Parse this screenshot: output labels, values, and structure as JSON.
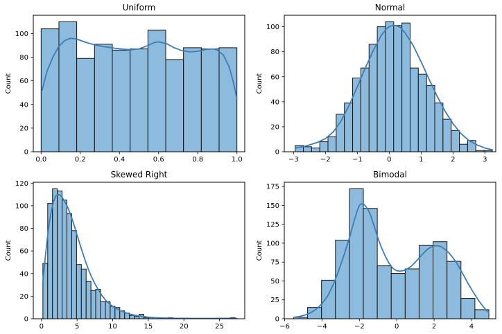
{
  "figure": {
    "background": "#ffffff",
    "bar_fill": "#8dbbdd",
    "bar_edge": "#141414",
    "kde_color": "#3e7cb4",
    "spine_color": "#000000",
    "tick_color": "#000000",
    "ylabel": "Count"
  },
  "chart_data": [
    {
      "type": "bar",
      "title": "Uniform",
      "ylabel": "Count",
      "grid": false,
      "legend": "none",
      "xlim": [
        -0.04,
        1.04
      ],
      "ylim": [
        0,
        115.5
      ],
      "xtick_values": [
        0.0,
        0.2,
        0.4,
        0.6,
        0.8,
        1.0
      ],
      "xtick_labels": [
        "0.0",
        "0.2",
        "0.4",
        "0.6",
        "0.8",
        "1.0"
      ],
      "ytick_values": [
        0,
        20,
        40,
        60,
        80,
        100
      ],
      "ytick_labels": [
        "0",
        "20",
        "40",
        "60",
        "80",
        "100"
      ],
      "bins": {
        "start": 0.0,
        "width": 0.090909,
        "counts": [
          104,
          110,
          79,
          91,
          86,
          87,
          103,
          78,
          88,
          87,
          88
        ]
      },
      "kde_line": [
        [
          0.005,
          52
        ],
        [
          0.03,
          68
        ],
        [
          0.06,
          80
        ],
        [
          0.09,
          89
        ],
        [
          0.12,
          94
        ],
        [
          0.15,
          96
        ],
        [
          0.18,
          95.5
        ],
        [
          0.22,
          93
        ],
        [
          0.26,
          91
        ],
        [
          0.3,
          89.5
        ],
        [
          0.34,
          88.5
        ],
        [
          0.38,
          87.5
        ],
        [
          0.42,
          86.8
        ],
        [
          0.46,
          86.3
        ],
        [
          0.5,
          87
        ],
        [
          0.54,
          89.5
        ],
        [
          0.58,
          92.5
        ],
        [
          0.6,
          93
        ],
        [
          0.64,
          91.5
        ],
        [
          0.68,
          88
        ],
        [
          0.72,
          85.5
        ],
        [
          0.76,
          84.5
        ],
        [
          0.8,
          85
        ],
        [
          0.84,
          86.5
        ],
        [
          0.88,
          87
        ],
        [
          0.9,
          86
        ],
        [
          0.93,
          82
        ],
        [
          0.96,
          72
        ],
        [
          0.98,
          60
        ],
        [
          1.0,
          45
        ]
      ]
    },
    {
      "type": "bar",
      "title": "Normal",
      "ylabel": "Count",
      "grid": false,
      "legend": "none",
      "xlim": [
        -3.29,
        3.34
      ],
      "ylim": [
        0,
        109.2
      ],
      "xtick_values": [
        -3,
        -2,
        -1,
        0,
        1,
        2,
        3
      ],
      "xtick_labels": [
        "−3",
        "−2",
        "−1",
        "0",
        "1",
        "2",
        "3"
      ],
      "ytick_values": [
        0,
        20,
        40,
        60,
        80,
        100
      ],
      "ytick_labels": [
        "0",
        "20",
        "40",
        "60",
        "80",
        "100"
      ],
      "bins": {
        "start": -2.95,
        "width": 0.2575,
        "counts": [
          5,
          4,
          3,
          8,
          12,
          30,
          39,
          59,
          67,
          86,
          100,
          104,
          101,
          103,
          67,
          62,
          53,
          39,
          26,
          17,
          6,
          9,
          1,
          1
        ]
      },
      "kde_line": [
        [
          -2.95,
          3
        ],
        [
          -2.7,
          4
        ],
        [
          -2.5,
          5.5
        ],
        [
          -2.25,
          7.5
        ],
        [
          -2,
          10.5
        ],
        [
          -1.75,
          16
        ],
        [
          -1.5,
          25
        ],
        [
          -1.25,
          37.5
        ],
        [
          -1,
          52
        ],
        [
          -0.75,
          67
        ],
        [
          -0.5,
          81
        ],
        [
          -0.25,
          93
        ],
        [
          -0.1,
          98
        ],
        [
          0,
          100
        ],
        [
          0.1,
          101
        ],
        [
          0.2,
          101
        ],
        [
          0.35,
          99.5
        ],
        [
          0.5,
          95
        ],
        [
          0.75,
          85
        ],
        [
          1,
          72
        ],
        [
          1.25,
          58
        ],
        [
          1.5,
          44.5
        ],
        [
          1.75,
          32.5
        ],
        [
          2,
          22.5
        ],
        [
          2.25,
          14.5
        ],
        [
          2.5,
          9
        ],
        [
          2.75,
          5.5
        ],
        [
          3,
          3
        ],
        [
          3.24,
          1.5
        ]
      ]
    },
    {
      "type": "bar",
      "title": "Skewed Right",
      "ylabel": "Count",
      "grid": false,
      "legend": "none",
      "xlim": [
        -1.15,
        28.55
      ],
      "ylim": [
        0,
        120.8
      ],
      "xtick_values": [
        0,
        5,
        10,
        15,
        20,
        25
      ],
      "xtick_labels": [
        "0",
        "5",
        "10",
        "15",
        "20",
        "25"
      ],
      "ytick_values": [
        0,
        20,
        40,
        60,
        80,
        100,
        120
      ],
      "ytick_labels": [
        "0",
        "20",
        "40",
        "60",
        "80",
        "100",
        "120"
      ],
      "bins": {
        "start": 0.2,
        "width": 0.675,
        "counts": [
          49,
          102,
          115,
          113,
          105,
          93,
          78,
          48,
          44,
          33,
          25,
          26,
          15,
          15,
          11,
          10,
          7,
          5,
          3,
          2,
          4,
          1,
          1,
          0,
          0,
          0,
          1,
          0,
          0,
          0,
          0,
          0,
          0,
          0,
          0,
          0,
          0,
          0,
          0,
          1
        ]
      },
      "kde_line": [
        [
          0.2,
          33
        ],
        [
          0.5,
          52
        ],
        [
          0.8,
          70
        ],
        [
          1.1,
          85
        ],
        [
          1.4,
          96
        ],
        [
          1.7,
          104
        ],
        [
          2,
          108.5
        ],
        [
          2.3,
          110
        ],
        [
          2.6,
          109.5
        ],
        [
          2.9,
          107.5
        ],
        [
          3.2,
          104.5
        ],
        [
          3.5,
          101
        ],
        [
          3.8,
          97
        ],
        [
          4.1,
          92
        ],
        [
          4.4,
          86.5
        ],
        [
          4.7,
          80.5
        ],
        [
          5,
          74
        ],
        [
          5.4,
          66
        ],
        [
          5.8,
          58
        ],
        [
          6.2,
          50.5
        ],
        [
          6.6,
          43.5
        ],
        [
          7,
          37.5
        ],
        [
          7.5,
          31
        ],
        [
          8,
          25.5
        ],
        [
          8.5,
          20.5
        ],
        [
          9,
          16.5
        ],
        [
          9.5,
          13.5
        ],
        [
          10,
          11
        ],
        [
          10.5,
          9
        ],
        [
          11,
          7.5
        ],
        [
          11.5,
          6
        ],
        [
          12,
          5
        ],
        [
          12.5,
          4
        ],
        [
          13,
          3.3
        ],
        [
          13.5,
          2.7
        ],
        [
          14,
          2.2
        ],
        [
          14.5,
          1.8
        ],
        [
          15,
          1.4
        ],
        [
          16,
          1
        ],
        [
          17,
          0.7
        ],
        [
          18,
          0.5
        ],
        [
          19,
          0.4
        ],
        [
          20,
          0.35
        ],
        [
          21,
          0.3
        ],
        [
          22,
          0.3
        ],
        [
          23,
          0.3
        ],
        [
          24,
          0.3
        ],
        [
          25,
          0.35
        ],
        [
          26,
          0.4
        ],
        [
          27,
          0.4
        ],
        [
          27.4,
          0.35
        ]
      ]
    },
    {
      "type": "bar",
      "title": "Bimodal",
      "ylabel": "Count",
      "grid": false,
      "legend": "none",
      "xlim": [
        -6.02,
        5.3
      ],
      "ylim": [
        0,
        180.6
      ],
      "xtick_values": [
        -6,
        -4,
        -2,
        0,
        2,
        4
      ],
      "xtick_labels": [
        "−6",
        "−4",
        "−2",
        "0",
        "2",
        "4"
      ],
      "ytick_values": [
        0,
        25,
        50,
        75,
        100,
        125,
        150,
        175
      ],
      "ytick_labels": [
        "0",
        "25",
        "50",
        "75",
        "100",
        "125",
        "150",
        "175"
      ],
      "bins": {
        "start": -5.52,
        "width": 0.7464,
        "counts": [
          2,
          15,
          51,
          104,
          172,
          146,
          70,
          60,
          66,
          97,
          102,
          76,
          27,
          12
        ]
      },
      "kde_line": [
        [
          -5.5,
          2
        ],
        [
          -5.2,
          3
        ],
        [
          -4.9,
          5
        ],
        [
          -4.6,
          8
        ],
        [
          -4.3,
          13
        ],
        [
          -4,
          20
        ],
        [
          -3.7,
          30
        ],
        [
          -3.4,
          45
        ],
        [
          -3.1,
          64
        ],
        [
          -2.8,
          86
        ],
        [
          -2.5,
          110
        ],
        [
          -2.3,
          128
        ],
        [
          -2.1,
          144
        ],
        [
          -2.0,
          150
        ],
        [
          -1.9,
          152
        ],
        [
          -1.8,
          152
        ],
        [
          -1.7,
          150
        ],
        [
          -1.55,
          145
        ],
        [
          -1.4,
          137
        ],
        [
          -1.2,
          122
        ],
        [
          -1.0,
          106
        ],
        [
          -0.8,
          93
        ],
        [
          -0.6,
          82
        ],
        [
          -0.4,
          73
        ],
        [
          -0.2,
          66.5
        ],
        [
          0,
          63.5
        ],
        [
          0.2,
          63
        ],
        [
          0.4,
          64
        ],
        [
          0.6,
          66.5
        ],
        [
          0.8,
          70
        ],
        [
          1.0,
          75
        ],
        [
          1.2,
          80.5
        ],
        [
          1.4,
          86
        ],
        [
          1.6,
          91
        ],
        [
          1.8,
          94.5
        ],
        [
          2.0,
          96.5
        ],
        [
          2.2,
          96.5
        ],
        [
          2.4,
          95
        ],
        [
          2.6,
          91.5
        ],
        [
          2.8,
          87
        ],
        [
          3.0,
          81
        ],
        [
          3.2,
          74
        ],
        [
          3.4,
          65.5
        ],
        [
          3.6,
          56.5
        ],
        [
          3.8,
          47.5
        ],
        [
          4.0,
          39
        ],
        [
          4.2,
          31
        ],
        [
          4.4,
          23.5
        ],
        [
          4.6,
          17
        ],
        [
          4.8,
          11
        ],
        [
          4.93,
          8
        ]
      ]
    }
  ]
}
